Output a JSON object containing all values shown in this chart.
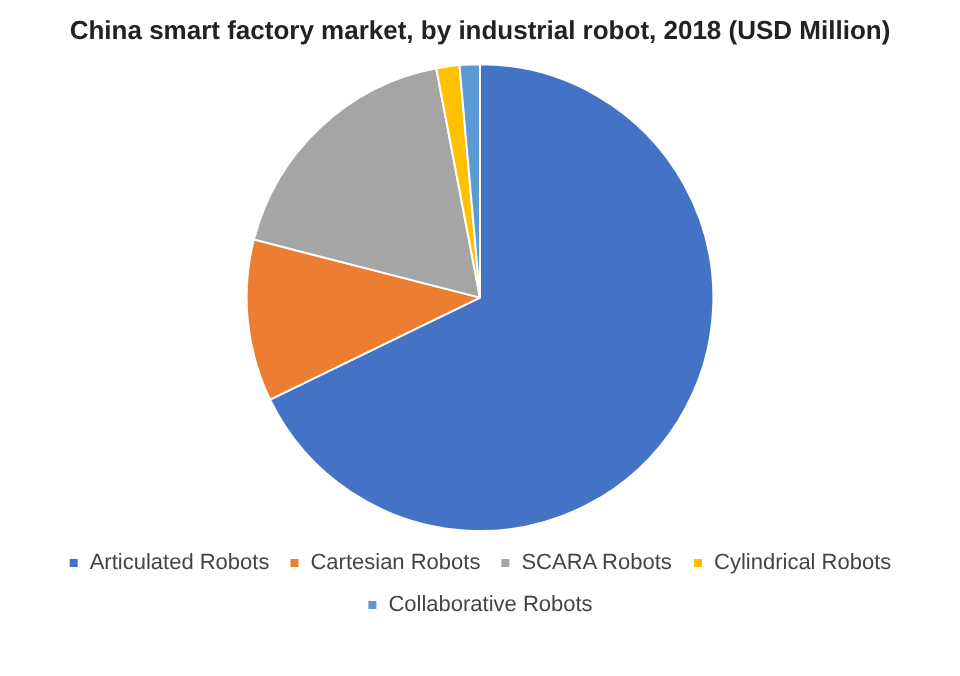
{
  "chart_data": {
    "type": "pie",
    "title": "China smart factory market, by industrial robot, 2018 (USD Million)",
    "categories": [
      "Articulated Robots",
      "Cartesian Robots",
      "SCARA Robots",
      "Cylindrical Robots",
      "Collaborative Robots"
    ],
    "values": [
      67.8,
      11.2,
      18,
      1.6,
      1.4
    ],
    "colors": [
      "#4472c4",
      "#ed7d31",
      "#a5a5a5",
      "#ffc000",
      "#5b9bd5"
    ],
    "legend": "bottom"
  }
}
